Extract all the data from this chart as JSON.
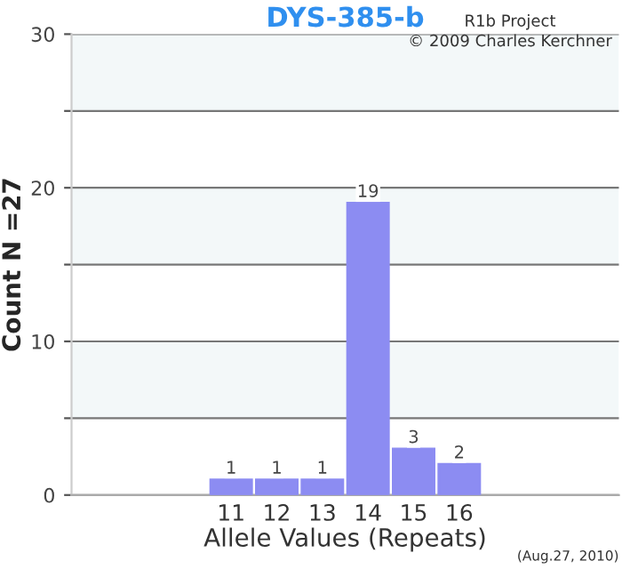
{
  "chart_data": {
    "type": "bar",
    "title": "DYS-385-b",
    "xlabel": "Allele Values (Repeats)",
    "ylabel": "Count N =27",
    "categories": [
      null,
      null,
      null,
      "11",
      "12",
      "13",
      "14",
      "15",
      "16",
      null,
      null,
      null
    ],
    "values": [
      null,
      null,
      null,
      1,
      1,
      1,
      19,
      3,
      2,
      null,
      null,
      null
    ],
    "color": "#8c8cf2",
    "ylim": [
      0,
      30
    ],
    "yticks": [
      0,
      {
        "value": 5,
        "label": null
      },
      10,
      {
        "value": 15,
        "label": null
      },
      20,
      {
        "value": 25,
        "label": null
      },
      30
    ],
    "grid": "y",
    "data_labels": true,
    "bands": [
      {
        "axis": "y",
        "from": 5,
        "to": 10,
        "color": "#f3f8f9"
      },
      {
        "axis": "y",
        "from": 15,
        "to": 20,
        "color": "#f3f8f9"
      },
      {
        "axis": "y",
        "from": 25,
        "to": 30,
        "color": "#f3f8f9"
      }
    ],
    "annotations": [
      "R1b Project",
      "© 2009 Charles Kerchner",
      "(Aug.27, 2010)"
    ]
  }
}
